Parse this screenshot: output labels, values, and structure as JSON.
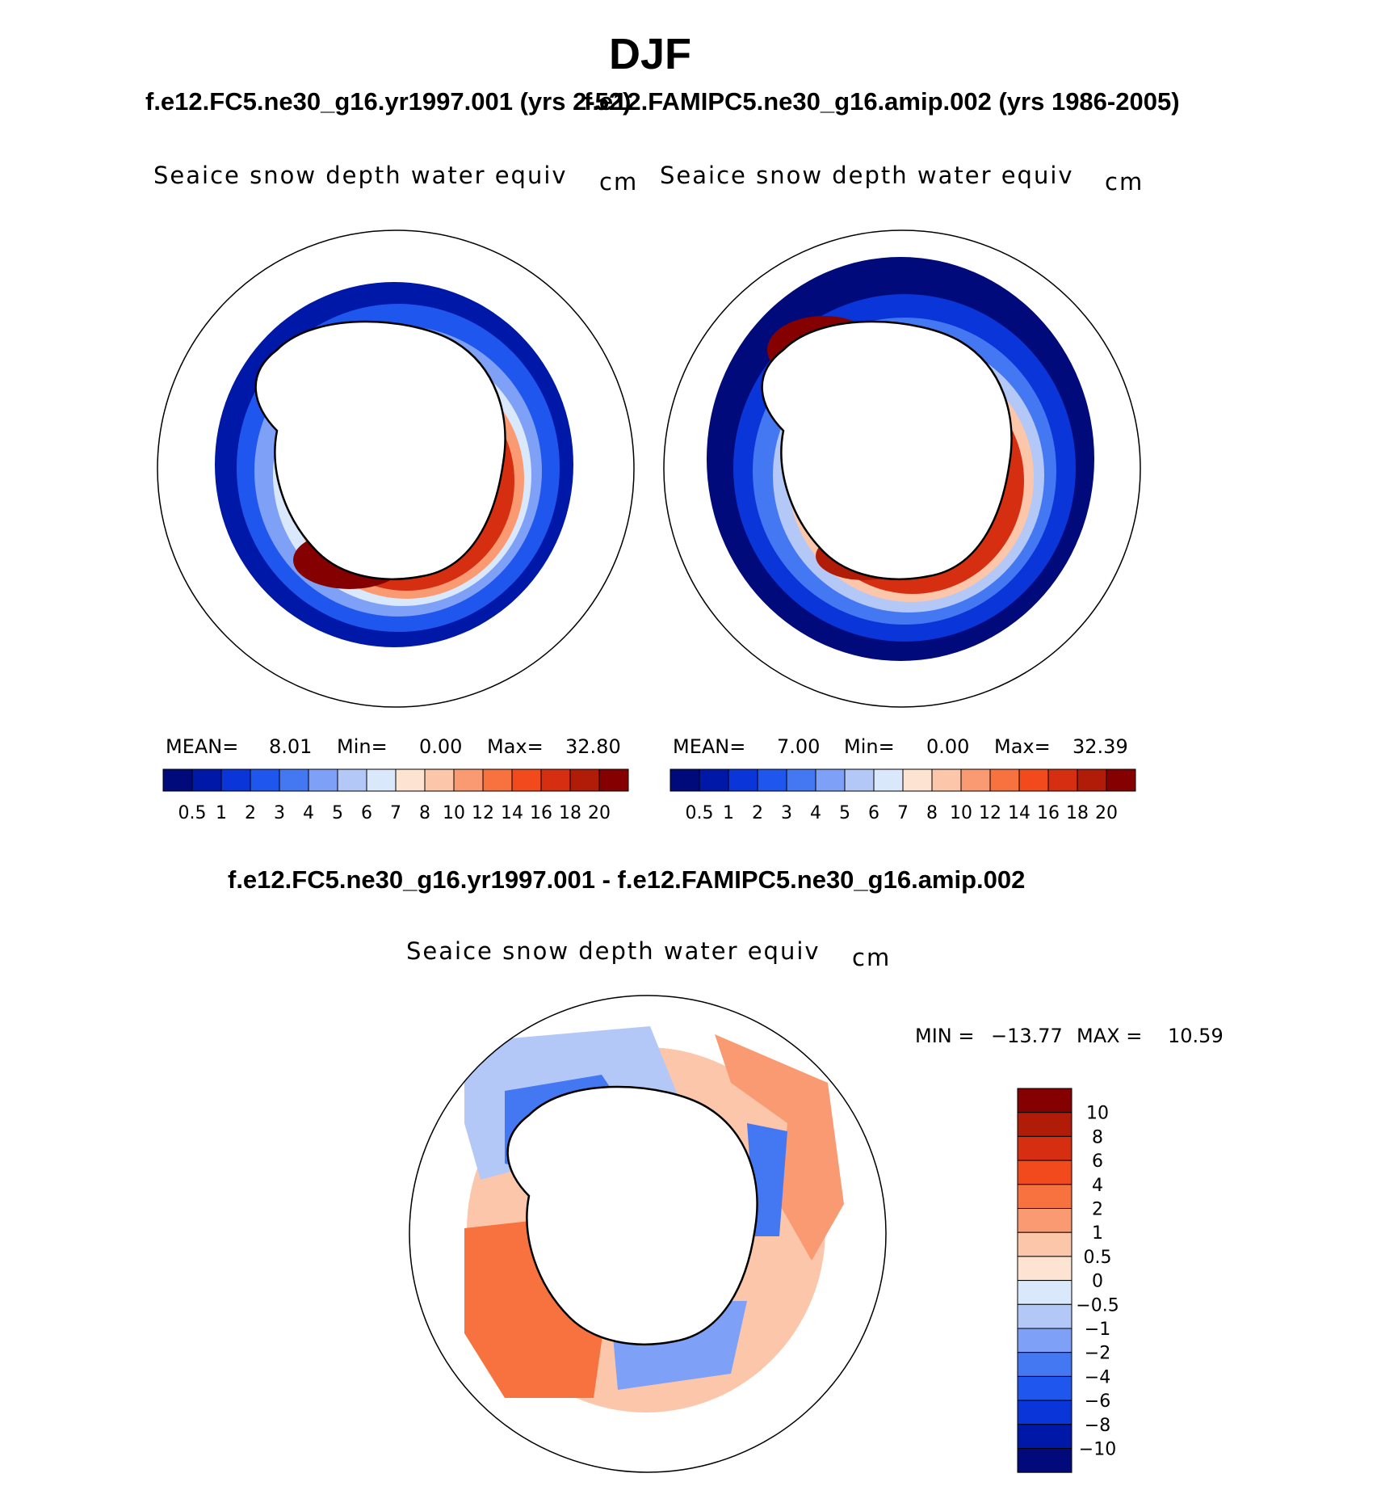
{
  "header": {
    "title": "DJF",
    "case1_title": "f.e12.FC5.ne30_g16.yr1997.001 (yrs 2-52)",
    "case2_title": "f.e12.FAMIPC5.ne30_g16.amip.002 (yrs 1986-2005)",
    "diff_title": "f.e12.FC5.ne30_g16.yr1997.001 - f.e12.FAMIPC5.ne30_g16.amip.002"
  },
  "chart_data": [
    {
      "type": "heatmap",
      "projection": "south-polar-stereographic",
      "variable": "Seaice snow depth water equiv",
      "units": "cm",
      "stats": {
        "mean_label": "MEAN=",
        "mean": "8.01",
        "min_label": "Min=",
        "min": "0.00",
        "max_label": "Max=",
        "max": "32.80"
      },
      "levels": [
        "0.5",
        "1",
        "2",
        "3",
        "4",
        "5",
        "6",
        "7",
        "8",
        "10",
        "12",
        "14",
        "16",
        "18",
        "20"
      ],
      "colors": [
        "#000a7a",
        "#0018a8",
        "#0a35d8",
        "#1f56ee",
        "#4478f2",
        "#7ea0f6",
        "#b4c8f8",
        "#dae8fb",
        "#fde4d2",
        "#fcc6aa",
        "#f99a72",
        "#f7723f",
        "#f24a1c",
        "#d62e10",
        "#b01c08",
        "#850000"
      ]
    },
    {
      "type": "heatmap",
      "projection": "south-polar-stereographic",
      "variable": "Seaice snow depth water equiv",
      "units": "cm",
      "stats": {
        "mean_label": "MEAN=",
        "mean": "7.00",
        "min_label": "Min=",
        "min": "0.00",
        "max_label": "Max=",
        "max": "32.39"
      },
      "levels": [
        "0.5",
        "1",
        "2",
        "3",
        "4",
        "5",
        "6",
        "7",
        "8",
        "10",
        "12",
        "14",
        "16",
        "18",
        "20"
      ],
      "colors": [
        "#000a7a",
        "#0018a8",
        "#0a35d8",
        "#1f56ee",
        "#4478f2",
        "#7ea0f6",
        "#b4c8f8",
        "#dae8fb",
        "#fde4d2",
        "#fcc6aa",
        "#f99a72",
        "#f7723f",
        "#f24a1c",
        "#d62e10",
        "#b01c08",
        "#850000"
      ]
    },
    {
      "type": "heatmap",
      "projection": "south-polar-stereographic",
      "variable": "Seaice snow depth water equiv",
      "units": "cm",
      "stats": {
        "min_label": "MIN =",
        "min": "−13.77",
        "max_label": "MAX =",
        "max": "10.59"
      },
      "levels": [
        "10",
        "8",
        "6",
        "4",
        "2",
        "1",
        "0.5",
        "0",
        "−0.5",
        "−1",
        "−2",
        "−4",
        "−6",
        "−8",
        "−10"
      ],
      "colors": [
        "#850000",
        "#b01c08",
        "#d62e10",
        "#f24a1c",
        "#f7723f",
        "#f99a72",
        "#fcc6aa",
        "#fde4d2",
        "#dae8fb",
        "#b4c8f8",
        "#7ea0f6",
        "#4478f2",
        "#1f56ee",
        "#0a35d8",
        "#0018a8",
        "#000a7a"
      ]
    }
  ]
}
